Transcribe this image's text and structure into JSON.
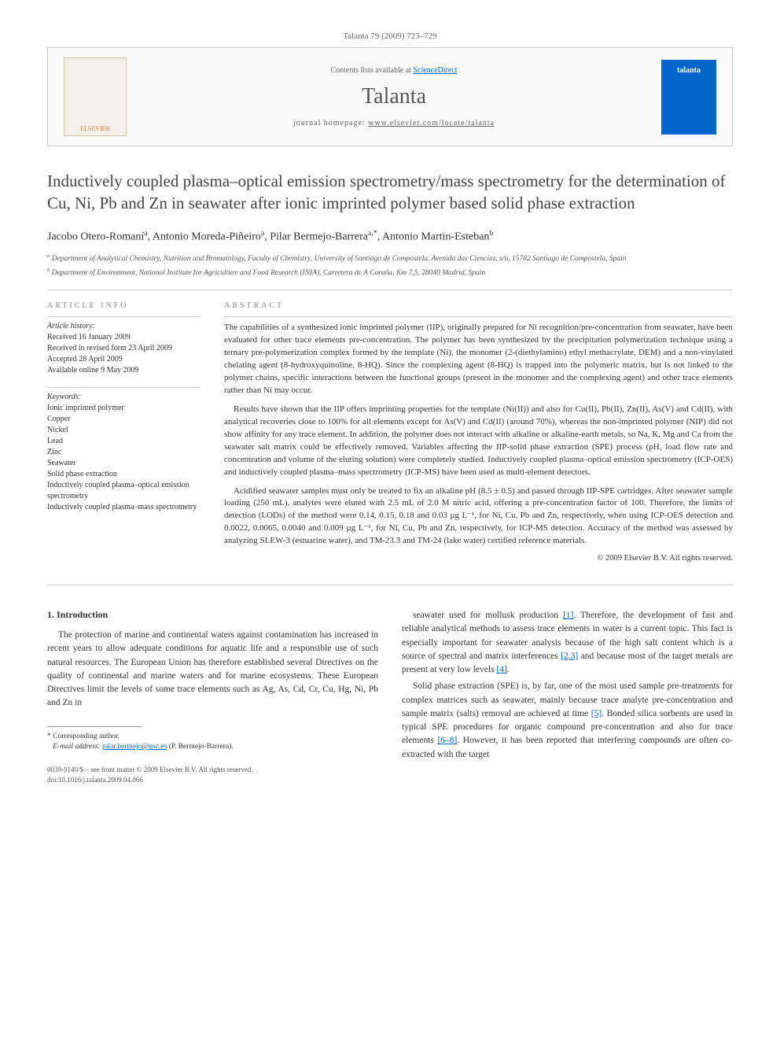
{
  "header": {
    "running": "Talanta 79 (2009) 723–729",
    "contents_avail": "Contents lists available at ",
    "contents_link": "ScienceDirect",
    "journal": "Talanta",
    "homepage_label": "journal homepage: ",
    "homepage_url": "www.elsevier.com/locate/talanta",
    "publisher_logo": "ELSEVIER",
    "cover_label": "talanta"
  },
  "title": "Inductively coupled plasma–optical emission spectrometry/mass spectrometry for the determination of Cu, Ni, Pb and Zn in seawater after ionic imprinted polymer based solid phase extraction",
  "authors": [
    {
      "name": "Jacobo Otero-Romaní",
      "sup": "a"
    },
    {
      "name": "Antonio Moreda-Piñeiro",
      "sup": "a"
    },
    {
      "name": "Pilar Bermejo-Barrera",
      "sup": "a,*"
    },
    {
      "name": "Antonio Martin-Esteban",
      "sup": "b"
    }
  ],
  "affiliations": {
    "a": "Department of Analytical Chemistry, Nutrition and Bromatology, Faculty of Chemistry, University of Santiago de Compostela, Avenida das Ciencias, s/n, 15782 Santiago de Compostela, Spain",
    "b": "Department of Environment, National Institute for Agriculture and Food Research (INIA), Carretera de A Coruña, Km 7,5, 28040 Madrid, Spain"
  },
  "article_info": {
    "label": "ARTICLE INFO",
    "history_label": "Article history:",
    "history": [
      "Received 16 January 2009",
      "Received in revised form 23 April 2009",
      "Accepted 28 April 2009",
      "Available online 9 May 2009"
    ],
    "keywords_label": "Keywords:",
    "keywords": [
      "Ionic imprinted polymer",
      "Copper",
      "Nickel",
      "Lead",
      "Zinc",
      "Seawater",
      "Solid phase extraction",
      "Inductively coupled plasma–optical emission spectrometry",
      "Inductively coupled plasma–mass spectrometry"
    ]
  },
  "abstract": {
    "label": "ABSTRACT",
    "paragraphs": [
      "The capabilities of a synthesized ionic imprinted polymer (IIP), originally prepared for Ni recognition/pre-concentration from seawater, have been evaluated for other trace elements pre-concentration. The polymer has been synthesized by the precipitation polymerization technique using a ternary pre-polymerization complex formed by the template (Ni), the monomer (2-(diethylamino) ethyl methacrylate, DEM) and a non-vinylated chelating agent (8-hydroxyquinoline, 8-HQ). Since the complexing agent (8-HQ) is trapped into the polymeric matrix, but is not linked to the polymer chains, specific interactions between the functional groups (present in the monomer and the complexing agent) and other trace elements rather than Ni may occur.",
      "Results have shown that the IIP offers imprinting properties for the template (Ni(II)) and also for Cu(II), Pb(II), Zn(II), As(V) and Cd(II), with analytical recoveries close to 100% for all elements except for As(V) and Cd(II) (around 70%), whereas the non-imprinted polymer (NIP) did not show affinity for any trace element. In addition, the polymer does not interact with alkaline or alkaline-earth metals, so Na, K, Mg and Ca from the seawater salt matrix could be effectively removed. Variables affecting the IIP-solid phase extraction (SPE) process (pH, load flow rate and concentration and volume of the eluting solution) were completely studied. Inductively coupled plasma–optical emission spectrometry (ICP-OES) and inductively coupled plasma–mass spectrometry (ICP-MS) have been used as multi-element detectors.",
      "Acidified seawater samples must only be treated to fix an alkaline pH (8.5 ± 0.5) and passed through IIP-SPE cartridges. After seawater sample loading (250 mL), analytes were eluted with 2.5 mL of 2.0 M nitric acid, offering a pre-concentration factor of 100. Therefore, the limits of detection (LODs) of the method were 0.14, 0.15, 0.18 and 0.03 µg L⁻¹, for Ni, Cu, Pb and Zn, respectively, when using ICP-OES detection and 0.0022, 0.0065, 0.0040 and 0.009 µg L⁻¹, for Ni, Cu, Pb and Zn, respectively, for ICP-MS detection. Accuracy of the method was assessed by analyzing SLEW-3 (estuarine water), and TM-23.3 and TM-24 (lake water) certified reference materials."
    ],
    "copyright": "© 2009 Elsevier B.V. All rights reserved."
  },
  "body": {
    "section_number": "1.",
    "section_title": "Introduction",
    "left_paragraphs": [
      "The protection of marine and continental waters against contamination has increased in recent years to allow adequate conditions for aquatic life and a responsible use of such natural resources. The European Union has therefore established several Directives on the quality of continental and marine waters and for marine ecosystems. These European Directives limit the levels of some trace elements such as Ag, As, Cd, Cr, Cu, Hg, Ni, Pb and Zn in"
    ],
    "right_paragraphs": [
      "seawater used for mollusk production [1]. Therefore, the development of fast and reliable analytical methods to assess trace elements in water is a current topic. This fact is especially important for seawater analysis because of the high salt content which is a source of spectral and matrix interferences [2,3] and because most of the target metals are present at very low levels [4].",
      "Solid phase extraction (SPE) is, by far, one of the most used sample pre-treatments for complex matrices such as seawater, mainly because trace analyte pre-concentration and sample matrix (salts) removal are achieved at time [5]. Bonded silica sorbents are used in typical SPE procedures for organic compound pre-concentration and also for trace elements [6–8]. However, it has been reported that interfering compounds are often co-extracted with the target"
    ],
    "refs": {
      "r1": "[1]",
      "r2": "[2,3]",
      "r4": "[4]",
      "r5": "[5]",
      "r6": "[6–8]"
    }
  },
  "footnote": {
    "corr_label": "Corresponding author.",
    "email_label": "E-mail address:",
    "email": "pilar.bermejo@usc.es",
    "email_who": "(P. Bermejo-Barrera)."
  },
  "footer": {
    "issn": "0039-9140/$ – see front matter © 2009 Elsevier B.V. All rights reserved.",
    "doi": "doi:10.1016/j.talanta.2009.04.066"
  }
}
